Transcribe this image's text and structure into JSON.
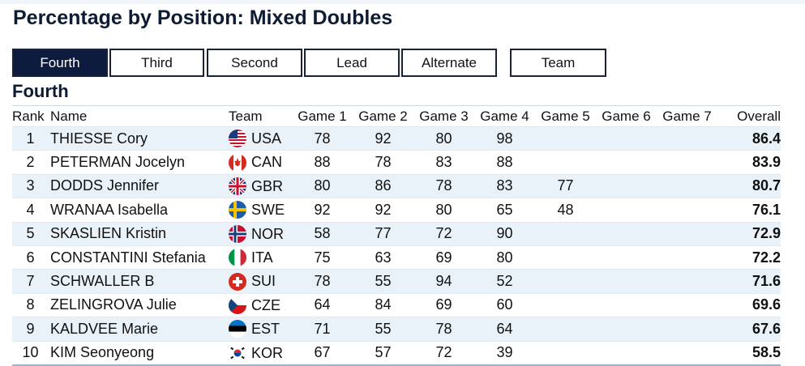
{
  "page": {
    "title": "Percentage by Position: Mixed Doubles"
  },
  "tabs": [
    {
      "label": "Fourth",
      "active": true
    },
    {
      "label": "Third",
      "active": false
    },
    {
      "label": "Second",
      "active": false
    },
    {
      "label": "Lead",
      "active": false
    },
    {
      "label": "Alternate",
      "active": false
    },
    {
      "label": "Team",
      "active": false
    }
  ],
  "section": {
    "title": "Fourth"
  },
  "table": {
    "headers": {
      "rank": "Rank",
      "name": "Name",
      "team": "Team",
      "game1": "Game 1",
      "game2": "Game 2",
      "game3": "Game 3",
      "game4": "Game 4",
      "game5": "Game 5",
      "game6": "Game 6",
      "game7": "Game 7",
      "overall": "Overall"
    },
    "rows": [
      {
        "rank": "1",
        "name": "THIESSE Cory",
        "team": "USA",
        "flag_icon": "usa-flag-icon",
        "games": [
          "78",
          "92",
          "80",
          "98",
          "",
          "",
          ""
        ],
        "overall": "86.4"
      },
      {
        "rank": "2",
        "name": "PETERMAN Jocelyn",
        "team": "CAN",
        "flag_icon": "can-flag-icon",
        "games": [
          "88",
          "78",
          "83",
          "88",
          "",
          "",
          ""
        ],
        "overall": "83.9"
      },
      {
        "rank": "3",
        "name": "DODDS Jennifer",
        "team": "GBR",
        "flag_icon": "gbr-flag-icon",
        "games": [
          "80",
          "86",
          "78",
          "83",
          "77",
          "",
          ""
        ],
        "overall": "80.7"
      },
      {
        "rank": "4",
        "name": "WRANAA Isabella",
        "team": "SWE",
        "flag_icon": "swe-flag-icon",
        "games": [
          "92",
          "92",
          "80",
          "65",
          "48",
          "",
          ""
        ],
        "overall": "76.1"
      },
      {
        "rank": "5",
        "name": "SKASLIEN Kristin",
        "team": "NOR",
        "flag_icon": "nor-flag-icon",
        "games": [
          "58",
          "77",
          "72",
          "90",
          "",
          "",
          ""
        ],
        "overall": "72.9"
      },
      {
        "rank": "6",
        "name": "CONSTANTINI Stefania",
        "team": "ITA",
        "flag_icon": "ita-flag-icon",
        "games": [
          "75",
          "63",
          "69",
          "80",
          "",
          "",
          ""
        ],
        "overall": "72.2"
      },
      {
        "rank": "7",
        "name": "SCHWALLER B",
        "team": "SUI",
        "flag_icon": "sui-flag-icon",
        "games": [
          "78",
          "55",
          "94",
          "52",
          "",
          "",
          ""
        ],
        "overall": "71.6"
      },
      {
        "rank": "8",
        "name": "ZELINGROVA Julie",
        "team": "CZE",
        "flag_icon": "cze-flag-icon",
        "games": [
          "64",
          "84",
          "69",
          "60",
          "",
          "",
          ""
        ],
        "overall": "69.6"
      },
      {
        "rank": "9",
        "name": "KALDVEE Marie",
        "team": "EST",
        "flag_icon": "est-flag-icon",
        "games": [
          "71",
          "55",
          "78",
          "64",
          "",
          "",
          ""
        ],
        "overall": "67.6"
      },
      {
        "rank": "10",
        "name": "KIM Seonyeong",
        "team": "KOR",
        "flag_icon": "kor-flag-icon",
        "games": [
          "67",
          "57",
          "72",
          "39",
          "",
          "",
          ""
        ],
        "overall": "58.5"
      }
    ]
  },
  "colors": {
    "navy": "#0d1b3e",
    "row_stripe": "#e9f2f8"
  }
}
